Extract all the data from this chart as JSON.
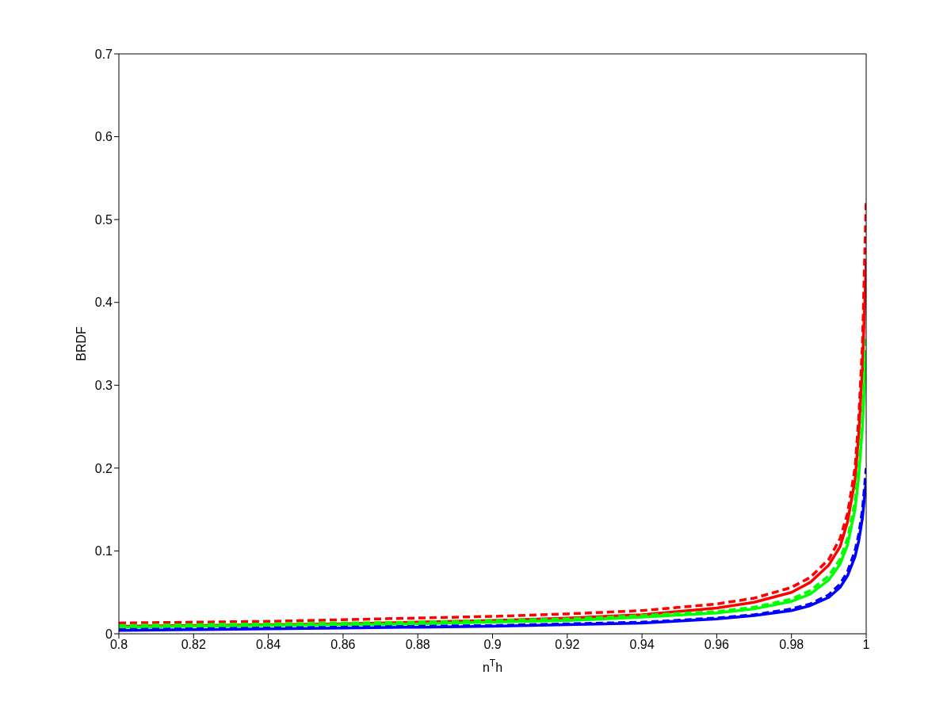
{
  "chart_data": {
    "type": "line",
    "xlabel": "n$^{T}$h",
    "ylabel": "BRDF",
    "x": [
      0.8,
      0.82,
      0.84,
      0.86,
      0.88,
      0.9,
      0.92,
      0.94,
      0.96,
      0.97,
      0.98,
      0.985,
      0.99,
      0.993,
      0.995,
      0.997,
      0.998,
      0.999,
      1
    ],
    "series": [
      {
        "color": "#ff0000",
        "line_style": "solid",
        "values": [
          0.009,
          0.01,
          0.011,
          0.012,
          0.014,
          0.016,
          0.019,
          0.023,
          0.031,
          0.038,
          0.05,
          0.062,
          0.083,
          0.105,
          0.135,
          0.185,
          0.24,
          0.32,
          0.45
        ]
      },
      {
        "color": "#ff0000",
        "line_style": "dashed",
        "values": [
          0.013,
          0.014,
          0.015,
          0.017,
          0.019,
          0.021,
          0.024,
          0.028,
          0.036,
          0.043,
          0.056,
          0.068,
          0.09,
          0.115,
          0.145,
          0.2,
          0.26,
          0.35,
          0.525
        ]
      },
      {
        "color": "#00ff00",
        "line_style": "solid",
        "values": [
          0.008,
          0.009,
          0.01,
          0.011,
          0.012,
          0.014,
          0.016,
          0.02,
          0.025,
          0.03,
          0.039,
          0.048,
          0.065,
          0.084,
          0.107,
          0.15,
          0.19,
          0.25,
          0.34
        ]
      },
      {
        "color": "#00ff00",
        "line_style": "dashed",
        "values": [
          0.01,
          0.011,
          0.012,
          0.013,
          0.014,
          0.016,
          0.018,
          0.022,
          0.027,
          0.032,
          0.042,
          0.052,
          0.07,
          0.09,
          0.115,
          0.16,
          0.2,
          0.26,
          0.36
        ]
      },
      {
        "color": "#0000ff",
        "line_style": "solid",
        "values": [
          0.004,
          0.005,
          0.006,
          0.007,
          0.008,
          0.009,
          0.011,
          0.013,
          0.018,
          0.022,
          0.028,
          0.034,
          0.044,
          0.056,
          0.07,
          0.093,
          0.112,
          0.14,
          0.185
        ]
      },
      {
        "color": "#0000ff",
        "line_style": "dashed",
        "values": [
          0.005,
          0.006,
          0.007,
          0.008,
          0.009,
          0.01,
          0.012,
          0.014,
          0.019,
          0.023,
          0.03,
          0.036,
          0.047,
          0.06,
          0.075,
          0.1,
          0.12,
          0.15,
          0.2
        ]
      }
    ],
    "xlim": [
      0.8,
      1
    ],
    "xticks": [
      0.8,
      0.82,
      0.84,
      0.86,
      0.88,
      0.9,
      0.92,
      0.94,
      0.96,
      0.98,
      1
    ],
    "ylim": [
      0,
      0.7
    ],
    "yticks": [
      0,
      0.1,
      0.2,
      0.3,
      0.4,
      0.5,
      0.6,
      0.7
    ]
  }
}
